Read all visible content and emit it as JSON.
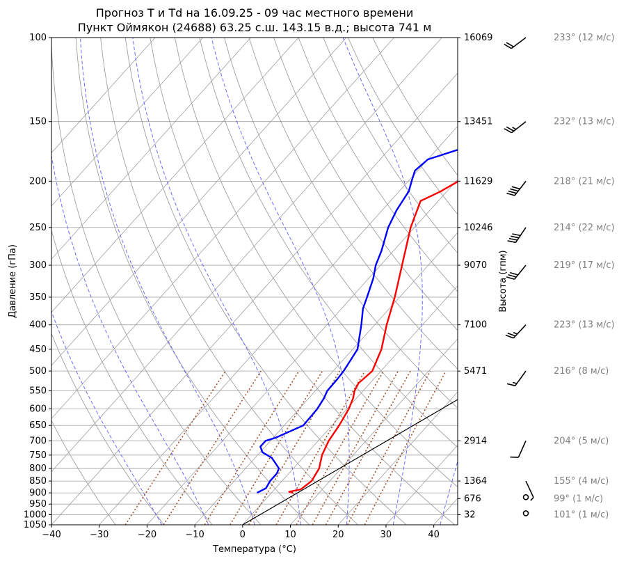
{
  "title": {
    "line1": "Прогноз T и Td на 16.09.25 - 09 час местного времени",
    "line2": "Пункт Оймякон (24688) 63.25 с.ш. 143.15 в.д.; высота 741 м"
  },
  "chart_data": {
    "type": "skew-t",
    "xlabel": "Температура (°C)",
    "ylabel": "Давление (гПа)",
    "ylabel_right": "Высота (гпм)",
    "xlim": [
      -40,
      45
    ],
    "ylim": [
      1050,
      100
    ],
    "y_scale": "log",
    "x_ticks": [
      "−40",
      "−30",
      "−20",
      "−10",
      "0",
      "10",
      "20",
      "30",
      "40"
    ],
    "x_tick_values": [
      -40,
      -30,
      -20,
      -10,
      0,
      10,
      20,
      30,
      40
    ],
    "pressure_ticks": [
      100,
      150,
      200,
      250,
      300,
      350,
      400,
      450,
      500,
      550,
      600,
      650,
      700,
      750,
      800,
      850,
      900,
      950,
      1000,
      1050
    ],
    "height_ticks": [
      {
        "p": 100,
        "label": "16069"
      },
      {
        "p": 150,
        "label": "13451"
      },
      {
        "p": 200,
        "label": "11629"
      },
      {
        "p": 250,
        "label": "10246"
      },
      {
        "p": 300,
        "label": "9070"
      },
      {
        "p": 400,
        "label": "7100"
      },
      {
        "p": 500,
        "label": "5471"
      },
      {
        "p": 700,
        "label": "2914"
      },
      {
        "p": 850,
        "label": "1364"
      },
      {
        "p": 925,
        "label": "676"
      },
      {
        "p": 1000,
        "label": "32"
      }
    ],
    "temperature": {
      "color": "#ff0000",
      "points": [
        [
          900,
          4.5
        ],
        [
          895,
          3.5
        ],
        [
          885,
          5.5
        ],
        [
          860,
          6.0
        ],
        [
          850,
          6.2
        ],
        [
          800,
          5.4
        ],
        [
          750,
          3.5
        ],
        [
          700,
          2.2
        ],
        [
          650,
          1.5
        ],
        [
          600,
          0.4
        ],
        [
          570,
          -0.7
        ],
        [
          550,
          -1.8
        ],
        [
          530,
          -2.4
        ],
        [
          500,
          -1.8
        ],
        [
          450,
          -4.0
        ],
        [
          400,
          -7.5
        ],
        [
          350,
          -11.0
        ],
        [
          300,
          -15.5
        ],
        [
          250,
          -20.8
        ],
        [
          220,
          -23.7
        ],
        [
          210,
          -21.3
        ],
        [
          200,
          -19.5
        ],
        [
          180,
          -16.0
        ],
        [
          170,
          -13.0
        ],
        [
          160,
          -11.0
        ],
        [
          150,
          -7.5
        ],
        [
          140,
          -6.0
        ],
        [
          130,
          -3.5
        ],
        [
          110,
          1.0
        ],
        [
          100,
          3.5
        ]
      ]
    },
    "dewpoint": {
      "color": "#0000ff",
      "points": [
        [
          900,
          -3.0
        ],
        [
          880,
          -2.0
        ],
        [
          850,
          -2.5
        ],
        [
          820,
          -2.5
        ],
        [
          800,
          -3.0
        ],
        [
          760,
          -6.5
        ],
        [
          740,
          -9.5
        ],
        [
          720,
          -11.0
        ],
        [
          700,
          -11.0
        ],
        [
          690,
          -9.5
        ],
        [
          650,
          -6.0
        ],
        [
          600,
          -6.2
        ],
        [
          570,
          -6.8
        ],
        [
          550,
          -7.5
        ],
        [
          520,
          -7.6
        ],
        [
          500,
          -7.8
        ],
        [
          450,
          -9.0
        ],
        [
          400,
          -12.8
        ],
        [
          370,
          -15.5
        ],
        [
          350,
          -16.8
        ],
        [
          320,
          -19.0
        ],
        [
          300,
          -21.0
        ],
        [
          280,
          -22.5
        ],
        [
          250,
          -25.5
        ],
        [
          230,
          -27.0
        ],
        [
          210,
          -28.0
        ],
        [
          200,
          -29.3
        ],
        [
          190,
          -30.6
        ],
        [
          180,
          -30.0
        ],
        [
          170,
          -24.5
        ],
        [
          160,
          -21.0
        ],
        [
          150,
          -16.0
        ],
        [
          130,
          -11.5
        ],
        [
          120,
          -8.5
        ],
        [
          110,
          -4.5
        ],
        [
          100,
          -2.5
        ]
      ]
    },
    "moist_adiabats_C": [
      -20,
      -10,
      0,
      10,
      20,
      30,
      40
    ],
    "dry_adiabats_C": [
      -30,
      -20,
      -10,
      0,
      10,
      20,
      30,
      40,
      50,
      60,
      70,
      80,
      90,
      100,
      110,
      120,
      130
    ],
    "isotherms_C": [
      -110,
      -100,
      -90,
      -80,
      -70,
      -60,
      -50,
      -40,
      -30,
      -20,
      -10,
      0,
      10,
      20,
      30,
      40
    ],
    "mixing_ratios_gkg": [
      0.5,
      1,
      2,
      3,
      4,
      6,
      8,
      10,
      12,
      16,
      20
    ],
    "reference_line": [
      [
        1050,
        0
      ],
      [
        340,
        40
      ]
    ],
    "wind": [
      {
        "p": 100,
        "dir": 233,
        "spd": 12,
        "label": "233° (12 м/с)"
      },
      {
        "p": 150,
        "dir": 232,
        "spd": 13,
        "label": "232° (13 м/с)"
      },
      {
        "p": 200,
        "dir": 218,
        "spd": 21,
        "label": "218° (21 м/с)"
      },
      {
        "p": 250,
        "dir": 214,
        "spd": 22,
        "label": "214° (22 м/с)"
      },
      {
        "p": 300,
        "dir": 219,
        "spd": 17,
        "label": "219° (17 м/с)"
      },
      {
        "p": 400,
        "dir": 223,
        "spd": 13,
        "label": "223° (13 м/с)"
      },
      {
        "p": 500,
        "dir": 216,
        "spd": 8,
        "label": "216° (8 м/с)"
      },
      {
        "p": 700,
        "dir": 204,
        "spd": 5,
        "label": "204° (5 м/с)"
      },
      {
        "p": 850,
        "dir": 155,
        "spd": 4,
        "label": "155° (4 м/с)"
      },
      {
        "p": 925,
        "dir": 99,
        "spd": 1,
        "label": "99° (1 м/с)"
      },
      {
        "p": 1000,
        "dir": 101,
        "spd": 1,
        "label": "101° (1 м/с)"
      }
    ],
    "colors": {
      "grid": "#a0a0a0",
      "moist": "#6b6bff",
      "mixing": "#a0522d",
      "reference": "#000000",
      "wind_label": "#808080"
    }
  }
}
